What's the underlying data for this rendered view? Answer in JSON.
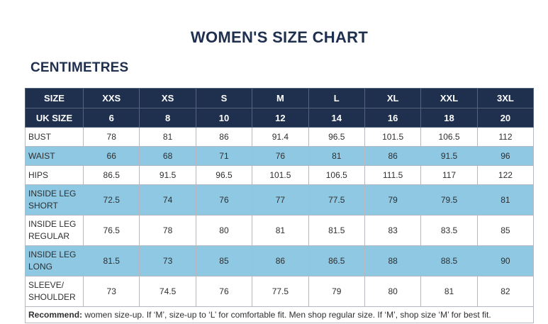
{
  "title": "WOMEN'S SIZE CHART",
  "unit_heading": "CENTIMETRES",
  "header": {
    "size_label": "SIZE",
    "sizes": [
      "XXS",
      "XS",
      "S",
      "M",
      "L",
      "XL",
      "XXL",
      "3XL"
    ],
    "uk_label": "UK SIZE",
    "uk_sizes": [
      "6",
      "8",
      "10",
      "12",
      "14",
      "16",
      "18",
      "20"
    ]
  },
  "rows": [
    {
      "label": "BUST",
      "values": [
        "78",
        "81",
        "86",
        "91.4",
        "96.5",
        "101.5",
        "106.5",
        "112"
      ]
    },
    {
      "label": "WAIST",
      "values": [
        "66",
        "68",
        "71",
        "76",
        "81",
        "86",
        "91.5",
        "96"
      ]
    },
    {
      "label": "HIPS",
      "values": [
        "86.5",
        "91.5",
        "96.5",
        "101.5",
        "106.5",
        "111.5",
        "117",
        "122"
      ]
    },
    {
      "label_line1": "INSIDE LEG",
      "label_line2": "SHORT",
      "values": [
        "72.5",
        "74",
        "76",
        "77",
        "77.5",
        "79",
        "79.5",
        "81"
      ]
    },
    {
      "label_line1": "INSIDE LEG",
      "label_line2": "REGULAR",
      "values": [
        "76.5",
        "78",
        "80",
        "81",
        "81.5",
        "83",
        "83.5",
        "85"
      ]
    },
    {
      "label_line1": "INSIDE LEG",
      "label_line2": "LONG",
      "values": [
        "81.5",
        "73",
        "85",
        "86",
        "86.5",
        "88",
        "88.5",
        "90"
      ]
    },
    {
      "label_line1": "SLEEVE/",
      "label_line2": "SHOULDER",
      "values": [
        "73",
        "74.5",
        "76",
        "77.5",
        "79",
        "80",
        "81",
        "82"
      ]
    }
  ],
  "note": {
    "lead": "Recommend:",
    "text": " women size-up. If ‘M’, size-up to ‘L’ for comfortable fit. Men shop regular size. If ‘M’, shop size ‘M’ for best fit."
  },
  "colors": {
    "header_bg": "#1f2f4e",
    "alt_row_bg": "#8ec8e3",
    "title_color": "#1f2f4e"
  }
}
